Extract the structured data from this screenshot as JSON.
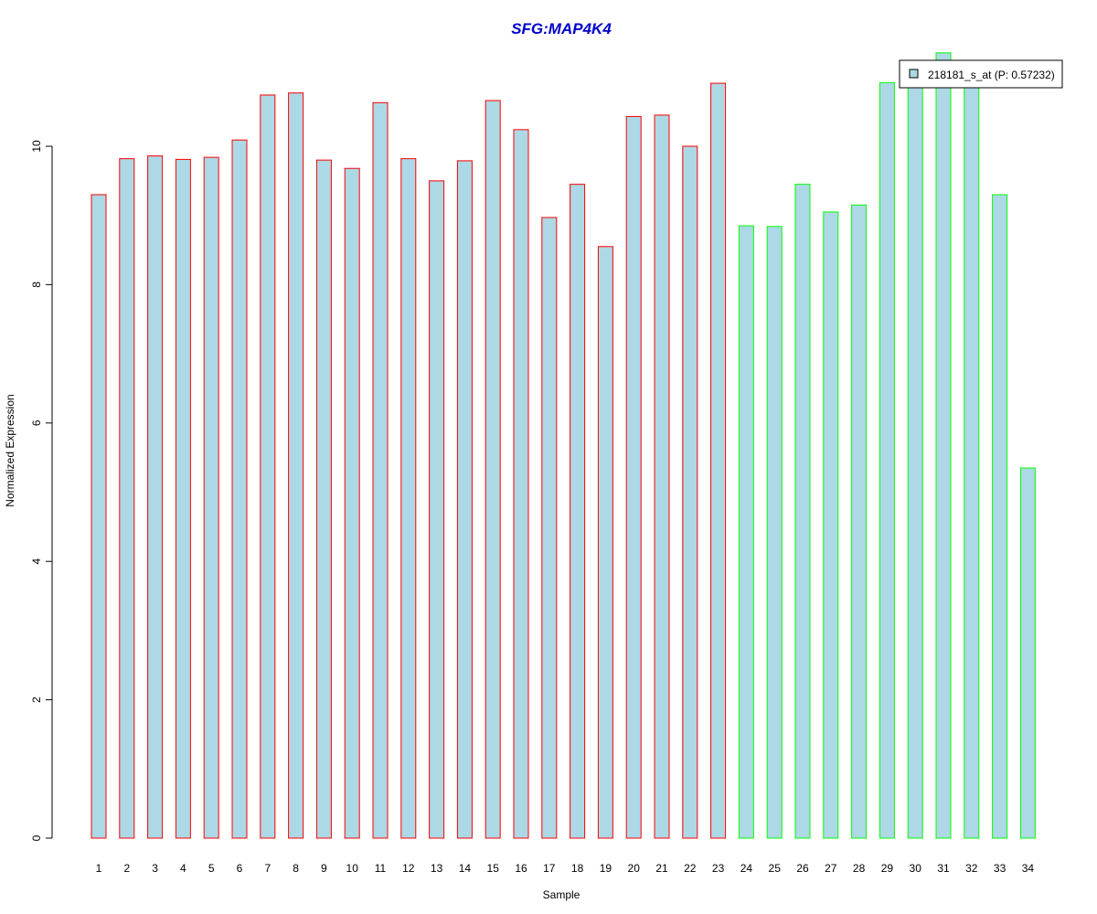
{
  "chart_data": {
    "type": "bar",
    "title": "SFG:MAP4K4",
    "xlabel": "Sample",
    "ylabel": "Normalized Expression",
    "categories": [
      "1",
      "2",
      "3",
      "4",
      "5",
      "6",
      "7",
      "8",
      "9",
      "10",
      "11",
      "12",
      "13",
      "14",
      "15",
      "16",
      "17",
      "18",
      "19",
      "20",
      "21",
      "22",
      "23",
      "24",
      "25",
      "26",
      "27",
      "28",
      "29",
      "30",
      "31",
      "32",
      "33",
      "34"
    ],
    "series": [
      {
        "name": "218181_s_at (P: 0.57232)",
        "values": [
          9.3,
          9.82,
          9.86,
          9.81,
          9.84,
          10.09,
          10.74,
          10.77,
          9.8,
          9.68,
          10.63,
          9.82,
          9.5,
          9.79,
          10.66,
          10.24,
          8.97,
          9.45,
          8.55,
          10.43,
          10.45,
          10.0,
          10.91,
          8.85,
          8.84,
          9.45,
          9.05,
          9.15,
          10.92,
          10.92,
          11.35,
          10.92,
          9.3,
          5.35
        ]
      }
    ],
    "group1_samples": 23,
    "group2_samples": 11,
    "ylim": [
      0,
      11.35
    ],
    "yticks": [
      0,
      2,
      4,
      6,
      8,
      10
    ],
    "grid": false,
    "legend_position": "top-right",
    "colors": {
      "title": "#0000CC",
      "bar_fill": "#ADD8E6",
      "group1_border": "#FF0000",
      "group2_border": "#00FF00",
      "axis": "#000000"
    }
  }
}
